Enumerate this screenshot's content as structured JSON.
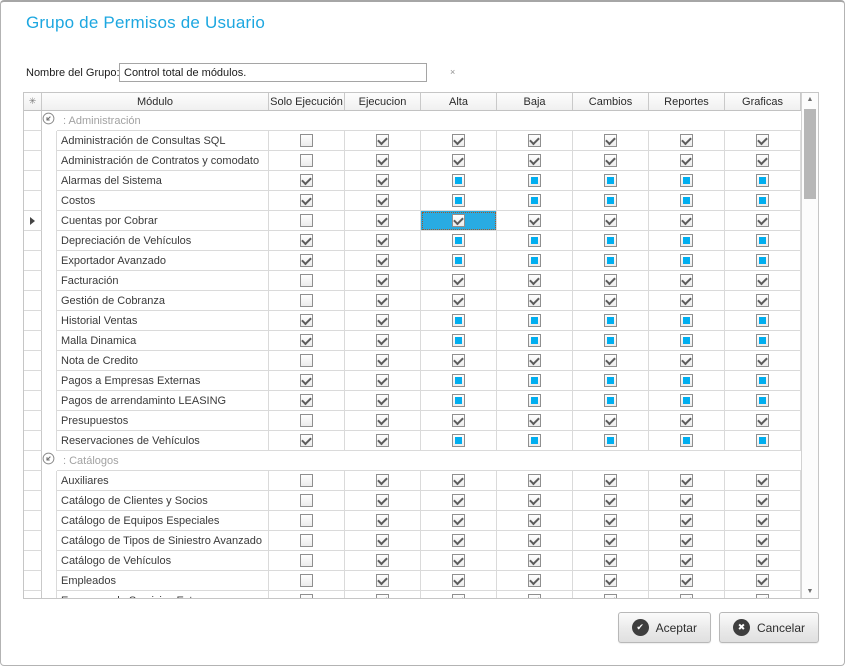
{
  "window": {
    "title": "Grupo de Permisos de Usuario"
  },
  "form": {
    "group_name_label": "Nombre del Grupo:",
    "group_name_value": "Control total de módulos.",
    "required_marker": "×"
  },
  "grid": {
    "selector_glyph": "✳",
    "columns": [
      "Módulo",
      "Solo Ejecución",
      "Ejecucion",
      "Alta",
      "Baja",
      "Cambios",
      "Reportes",
      "Graficas"
    ],
    "groups": [
      {
        "label": ": Administración",
        "rows": [
          {
            "module": "Administración de Consultas SQL",
            "states": [
              "u",
              "c",
              "c",
              "c",
              "c",
              "c",
              "c"
            ]
          },
          {
            "module": "Administración de Contratos y comodato",
            "states": [
              "u",
              "c",
              "c",
              "c",
              "c",
              "c",
              "c"
            ]
          },
          {
            "module": "Alarmas del Sistema",
            "states": [
              "c",
              "c",
              "i",
              "i",
              "i",
              "i",
              "i"
            ]
          },
          {
            "module": "Costos",
            "states": [
              "c",
              "c",
              "i",
              "i",
              "i",
              "i",
              "i"
            ]
          },
          {
            "module": "Cuentas por Cobrar",
            "states": [
              "u",
              "c",
              "c",
              "c",
              "c",
              "c",
              "c"
            ],
            "indicator": true,
            "selected_col": 2
          },
          {
            "module": "Depreciación de Vehículos",
            "states": [
              "c",
              "c",
              "i",
              "i",
              "i",
              "i",
              "i"
            ]
          },
          {
            "module": "Exportador Avanzado",
            "states": [
              "c",
              "c",
              "i",
              "i",
              "i",
              "i",
              "i"
            ]
          },
          {
            "module": "Facturación",
            "states": [
              "u",
              "c",
              "c",
              "c",
              "c",
              "c",
              "c"
            ]
          },
          {
            "module": "Gestión de Cobranza",
            "states": [
              "u",
              "c",
              "c",
              "c",
              "c",
              "c",
              "c"
            ]
          },
          {
            "module": "Historial Ventas",
            "states": [
              "c",
              "c",
              "i",
              "i",
              "i",
              "i",
              "i"
            ]
          },
          {
            "module": "Malla Dinamica",
            "states": [
              "c",
              "c",
              "i",
              "i",
              "i",
              "i",
              "i"
            ]
          },
          {
            "module": "Nota de Credito",
            "states": [
              "u",
              "c",
              "c",
              "c",
              "c",
              "c",
              "c"
            ]
          },
          {
            "module": "Pagos a Empresas Externas",
            "states": [
              "c",
              "c",
              "i",
              "i",
              "i",
              "i",
              "i"
            ]
          },
          {
            "module": "Pagos de arrendaminto LEASING",
            "states": [
              "c",
              "c",
              "i",
              "i",
              "i",
              "i",
              "i"
            ]
          },
          {
            "module": "Presupuestos",
            "states": [
              "u",
              "c",
              "c",
              "c",
              "c",
              "c",
              "c"
            ]
          },
          {
            "module": "Reservaciones de Vehículos",
            "states": [
              "c",
              "c",
              "i",
              "i",
              "i",
              "i",
              "i"
            ]
          }
        ]
      },
      {
        "label": ": Catálogos",
        "rows": [
          {
            "module": "Auxiliares",
            "states": [
              "u",
              "c",
              "c",
              "c",
              "c",
              "c",
              "c"
            ]
          },
          {
            "module": "Catálogo de Clientes y Socios",
            "states": [
              "u",
              "c",
              "c",
              "c",
              "c",
              "c",
              "c"
            ]
          },
          {
            "module": "Catálogo de Equipos Especiales",
            "states": [
              "u",
              "c",
              "c",
              "c",
              "c",
              "c",
              "c"
            ]
          },
          {
            "module": "Catálogo de Tipos de Siniestro Avanzado",
            "states": [
              "u",
              "c",
              "c",
              "c",
              "c",
              "c",
              "c"
            ]
          },
          {
            "module": "Catálogo de Vehículos",
            "states": [
              "u",
              "c",
              "c",
              "c",
              "c",
              "c",
              "c"
            ]
          },
          {
            "module": "Empleados",
            "states": [
              "u",
              "c",
              "c",
              "c",
              "c",
              "c",
              "c"
            ]
          }
        ]
      }
    ],
    "partial_row": {
      "module": "Empresas de Servicios Ext",
      "states": [
        "u",
        "c",
        "c",
        "c",
        "c",
        "c",
        "c"
      ]
    }
  },
  "buttons": {
    "accept_label": "Aceptar",
    "cancel_label": "Cancelar"
  },
  "colors": {
    "accent": "#1da7e0",
    "indeterminate_blue": "#00aeef",
    "selected_cell": "#29abe2"
  }
}
